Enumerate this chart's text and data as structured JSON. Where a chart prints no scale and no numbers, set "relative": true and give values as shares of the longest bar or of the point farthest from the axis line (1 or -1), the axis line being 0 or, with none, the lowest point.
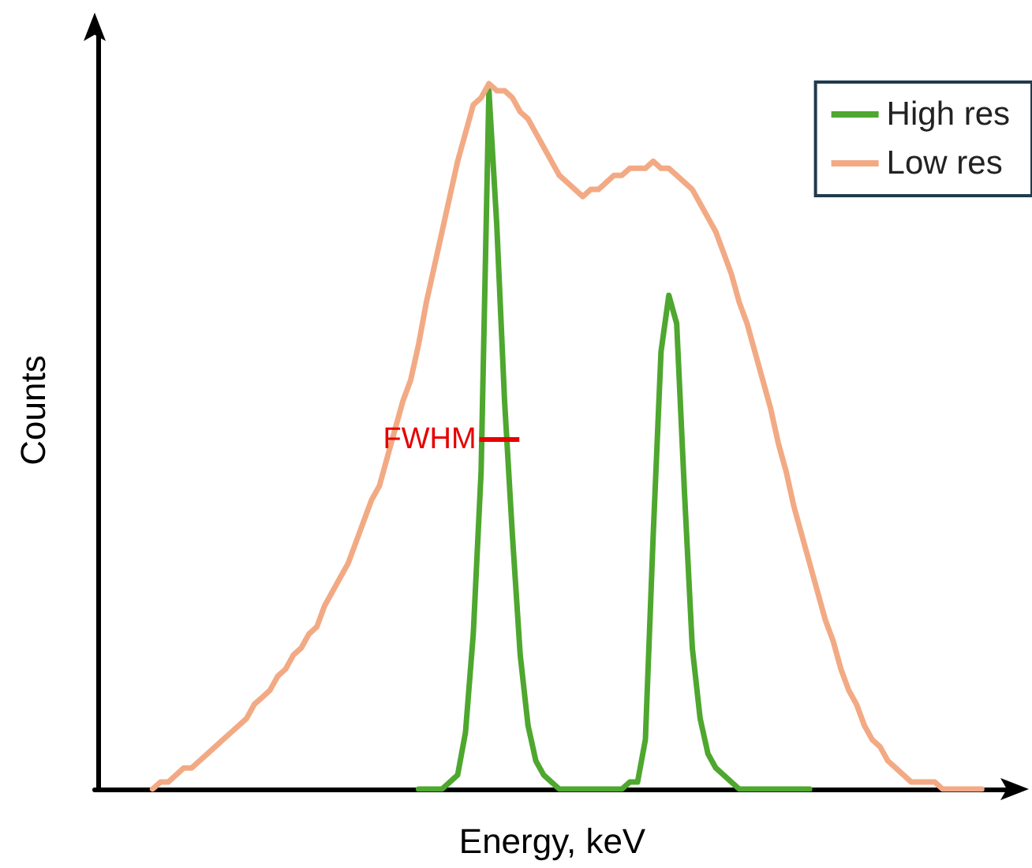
{
  "chart_data": {
    "type": "line",
    "relative": true,
    "xlabel": "Energy, keV",
    "ylabel": "Counts",
    "legend": "top right",
    "marker": "none",
    "line_style": "solid",
    "annotations": [
      "FWHM"
    ],
    "categories": [
      null,
      null,
      null,
      null,
      null,
      null,
      null,
      null,
      null,
      null,
      null,
      null,
      null,
      null,
      null,
      null,
      null,
      null,
      null,
      null,
      null,
      null,
      null,
      null,
      null,
      null,
      null,
      null,
      null,
      null,
      null,
      null,
      null,
      null,
      null,
      null,
      null,
      null,
      null,
      null,
      null,
      null,
      null,
      null,
      null,
      null,
      null,
      null,
      null,
      null,
      null,
      null,
      null,
      null,
      null,
      null,
      null,
      null,
      null,
      null,
      null,
      null,
      null,
      null,
      null,
      null,
      null,
      null,
      null,
      null,
      null,
      null,
      null,
      null,
      null,
      null,
      null,
      null,
      null,
      null,
      null,
      null,
      null,
      null,
      null,
      null,
      null,
      null,
      null,
      null,
      null,
      null,
      null,
      null,
      null,
      null,
      null,
      null,
      null,
      null,
      null,
      null,
      null,
      null,
      null,
      null,
      null,
      null,
      null,
      null,
      null,
      null,
      null,
      null
    ],
    "series": [
      {
        "name": "High res",
        "color": "#4ea72e",
        "values": [
          null,
          null,
          null,
          null,
          null,
          null,
          null,
          null,
          null,
          null,
          null,
          null,
          null,
          null,
          null,
          null,
          null,
          null,
          null,
          null,
          null,
          null,
          null,
          null,
          null,
          null,
          null,
          null,
          null,
          null,
          null,
          null,
          null,
          null,
          null,
          null,
          null,
          null,
          null,
          null,
          null,
          0,
          0,
          0,
          0,
          0.01,
          0.02,
          0.08,
          0.22,
          0.45,
          0.99,
          0.8,
          0.55,
          0.36,
          0.19,
          0.09,
          0.04,
          0.02,
          0.01,
          0,
          0,
          0,
          0,
          0,
          0,
          0,
          0,
          0,
          0.01,
          0.01,
          0.07,
          0.36,
          0.62,
          0.7,
          0.66,
          0.42,
          0.2,
          0.1,
          0.05,
          0.03,
          0.02,
          0.01,
          0,
          0,
          0,
          0,
          0,
          0,
          0,
          0,
          0,
          0,
          null,
          null,
          null,
          null,
          null,
          null,
          null,
          null,
          null,
          null,
          null,
          null,
          null,
          null,
          null,
          null,
          null,
          null,
          null,
          null,
          null,
          null
        ]
      },
      {
        "name": "Low res",
        "color": "#f2aa84",
        "values": [
          null,
          null,
          null,
          null,
          null,
          null,
          null,
          0,
          0.01,
          0.01,
          0.02,
          0.03,
          0.03,
          0.04,
          0.05,
          0.06,
          0.07,
          0.08,
          0.09,
          0.1,
          0.12,
          0.13,
          0.14,
          0.16,
          0.17,
          0.19,
          0.2,
          0.22,
          0.23,
          0.26,
          0.28,
          0.3,
          0.32,
          0.35,
          0.38,
          0.41,
          0.43,
          0.47,
          0.51,
          0.55,
          0.58,
          0.63,
          0.69,
          0.74,
          0.79,
          0.84,
          0.89,
          0.93,
          0.97,
          0.98,
          1,
          0.99,
          0.99,
          0.98,
          0.96,
          0.95,
          0.93,
          0.91,
          0.89,
          0.87,
          0.86,
          0.85,
          0.84,
          0.85,
          0.85,
          0.86,
          0.87,
          0.87,
          0.88,
          0.88,
          0.88,
          0.89,
          0.88,
          0.88,
          0.87,
          0.86,
          0.85,
          0.83,
          0.81,
          0.79,
          0.76,
          0.73,
          0.69,
          0.66,
          0.62,
          0.58,
          0.54,
          0.49,
          0.45,
          0.4,
          0.36,
          0.32,
          0.28,
          0.24,
          0.21,
          0.17,
          0.14,
          0.12,
          0.09,
          0.07,
          0.06,
          0.04,
          0.03,
          0.02,
          0.01,
          0.01,
          0.01,
          0.01,
          0,
          0,
          0,
          0,
          0,
          0
        ]
      }
    ]
  }
}
